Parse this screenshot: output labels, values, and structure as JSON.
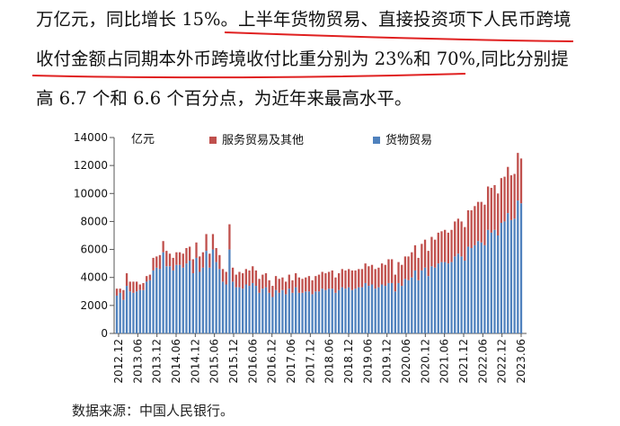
{
  "text": {
    "line1": "万亿元，同比增长 15%。上半年货物贸易、直接投资项下人民币跨境",
    "line2": "收付金额占同期本外币跨境收付比重分别为 23%和 70%,同比分别提",
    "line3": "高 6.7 个和 6.6 个百分点，为近年来最高水平。",
    "source": "数据来源：中国人民银行。"
  },
  "colors": {
    "goods": "#4f81bd",
    "services": "#c0504d",
    "underline": "#e02020"
  },
  "chart_data": {
    "type": "bar",
    "stacked": true,
    "title": "",
    "ylabel": "亿元",
    "ylim": [
      0,
      14000
    ],
    "yticks": [
      0,
      2000,
      4000,
      6000,
      8000,
      10000,
      12000,
      14000
    ],
    "xtick_labels": [
      "2012.12",
      "2013.06",
      "2013.12",
      "2014.06",
      "2014.12",
      "2015.06",
      "2015.12",
      "2016.06",
      "2016.12",
      "2017.06",
      "2017.12",
      "2018.06",
      "2018.12",
      "2019.06",
      "2019.12",
      "2020.06",
      "2020.12",
      "2021.06",
      "2021.12",
      "2022.06",
      "2022.12",
      "2023.06"
    ],
    "legend_position": "top",
    "grid": false,
    "series": [
      {
        "name": "货物贸易",
        "color": "#4f81bd",
        "values": [
          2700,
          2900,
          2400,
          3400,
          3000,
          2900,
          3000,
          3100,
          3100,
          3700,
          3800,
          4500,
          4700,
          4600,
          5800,
          4800,
          4800,
          4500,
          4900,
          4900,
          4700,
          5000,
          5200,
          4300,
          5400,
          4400,
          4700,
          5900,
          4700,
          6000,
          5100,
          4600,
          3700,
          3500,
          6000,
          3700,
          3300,
          3300,
          3200,
          3500,
          3400,
          3600,
          3400,
          2900,
          3200,
          3300,
          2900,
          2600,
          3100,
          2900,
          3100,
          2800,
          3200,
          2900,
          3300,
          2900,
          2900,
          3000,
          3000,
          2800,
          3000,
          3000,
          3200,
          3100,
          3200,
          3200,
          2900,
          3100,
          3300,
          3200,
          3300,
          3100,
          3200,
          3300,
          3300,
          3600,
          3400,
          3500,
          3200,
          3300,
          3500,
          3400,
          3600,
          3600,
          3000,
          3600,
          3400,
          3900,
          3800,
          4000,
          4500,
          3800,
          4500,
          4700,
          4100,
          4800,
          4700,
          5000,
          5100,
          5100,
          5000,
          5100,
          5500,
          5700,
          5500,
          5200,
          6200,
          6100,
          6300,
          6600,
          6500,
          6300,
          7400,
          7200,
          7400,
          7000,
          7900,
          8000,
          8600,
          8100,
          8200,
          9500,
          9300
        ]
      },
      {
        "name": "服务贸易及其他",
        "color": "#c0504d",
        "values": [
          500,
          300,
          700,
          900,
          700,
          800,
          700,
          400,
          500,
          400,
          400,
          900,
          800,
          1000,
          800,
          1100,
          900,
          900,
          900,
          900,
          1000,
          1100,
          1000,
          1000,
          1100,
          1100,
          1100,
          1200,
          1000,
          1100,
          1000,
          1000,
          900,
          900,
          1800,
          1000,
          900,
          1100,
          1100,
          1100,
          1100,
          1200,
          1100,
          1000,
          1000,
          1000,
          900,
          800,
          1000,
          1000,
          900,
          900,
          1000,
          900,
          1000,
          1100,
          1000,
          1000,
          1100,
          1000,
          1100,
          1200,
          1200,
          1200,
          1200,
          1300,
          1100,
          1200,
          1300,
          1300,
          1300,
          1400,
          1300,
          1300,
          1300,
          1400,
          1400,
          1400,
          1400,
          1400,
          1500,
          1500,
          1700,
          1700,
          1200,
          1500,
          1500,
          1600,
          1700,
          1800,
          1800,
          1600,
          1900,
          2000,
          1800,
          2100,
          2000,
          2200,
          2200,
          2300,
          2200,
          2300,
          2500,
          2500,
          2500,
          2400,
          2600,
          2700,
          2800,
          2800,
          2900,
          2900,
          3100,
          3200,
          3200,
          3000,
          3200,
          3200,
          3300,
          3200,
          3200,
          3400,
          3200
        ]
      }
    ]
  }
}
